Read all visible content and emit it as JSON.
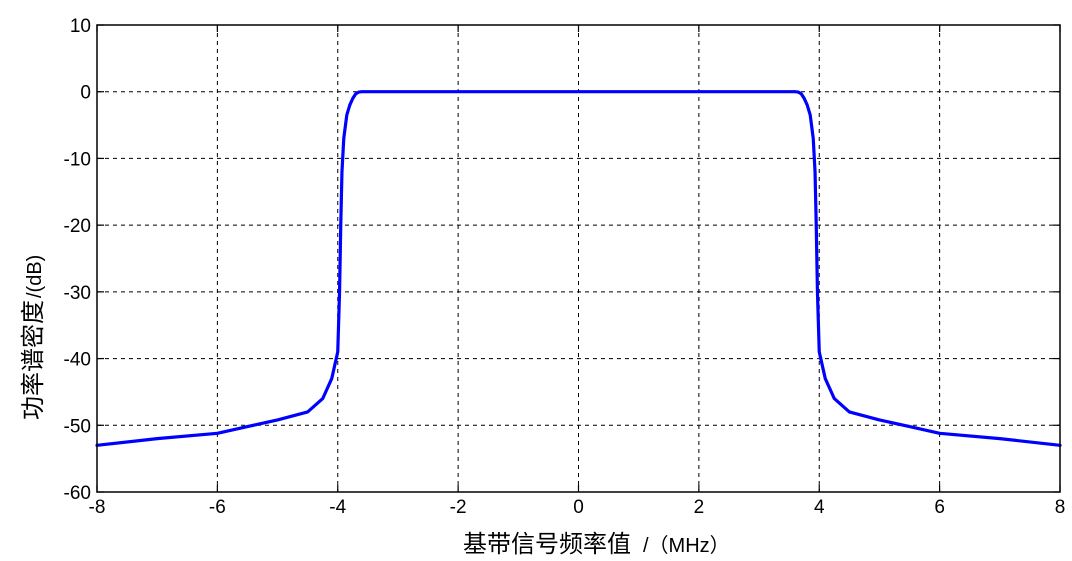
{
  "chart_data": {
    "type": "line",
    "xlabel": "基带信号频率值",
    "xlabel_unit": "/（MHz）",
    "ylabel": "功率谱密度",
    "ylabel_unit": "/(dB)",
    "xlim": [
      -8,
      8
    ],
    "ylim": [
      -60,
      10
    ],
    "x_ticks": [
      -8,
      -6,
      -4,
      -2,
      0,
      2,
      4,
      6,
      8
    ],
    "y_ticks": [
      10,
      0,
      -10,
      -20,
      -30,
      -40,
      -50,
      -60
    ],
    "grid": true,
    "grid_style": "dashed",
    "series": [
      {
        "color": "#0000ff",
        "x": [
          -8,
          -7,
          -6,
          -5.5,
          -5,
          -4.5,
          -4.25,
          -4.1,
          -4.0,
          -3.97,
          -3.95,
          -3.93,
          -3.9,
          -3.85,
          -3.8,
          -3.75,
          -3.7,
          -3.65,
          -3.6,
          0,
          3.6,
          3.65,
          3.7,
          3.75,
          3.8,
          3.85,
          3.9,
          3.93,
          3.95,
          3.97,
          4.0,
          4.1,
          4.25,
          4.5,
          5,
          5.5,
          6,
          7,
          8
        ],
        "y": [
          -53,
          -52,
          -51.2,
          -50.2,
          -49.2,
          -48,
          -46,
          -43,
          -39,
          -30,
          -20,
          -12,
          -7,
          -3.5,
          -2,
          -1,
          -0.3,
          -0.05,
          0,
          0,
          0,
          -0.05,
          -0.3,
          -1,
          -2,
          -3.5,
          -7,
          -12,
          -20,
          -30,
          -39,
          -43,
          -46,
          -48,
          -49.2,
          -50.2,
          -51.2,
          -52,
          -53
        ]
      }
    ]
  }
}
